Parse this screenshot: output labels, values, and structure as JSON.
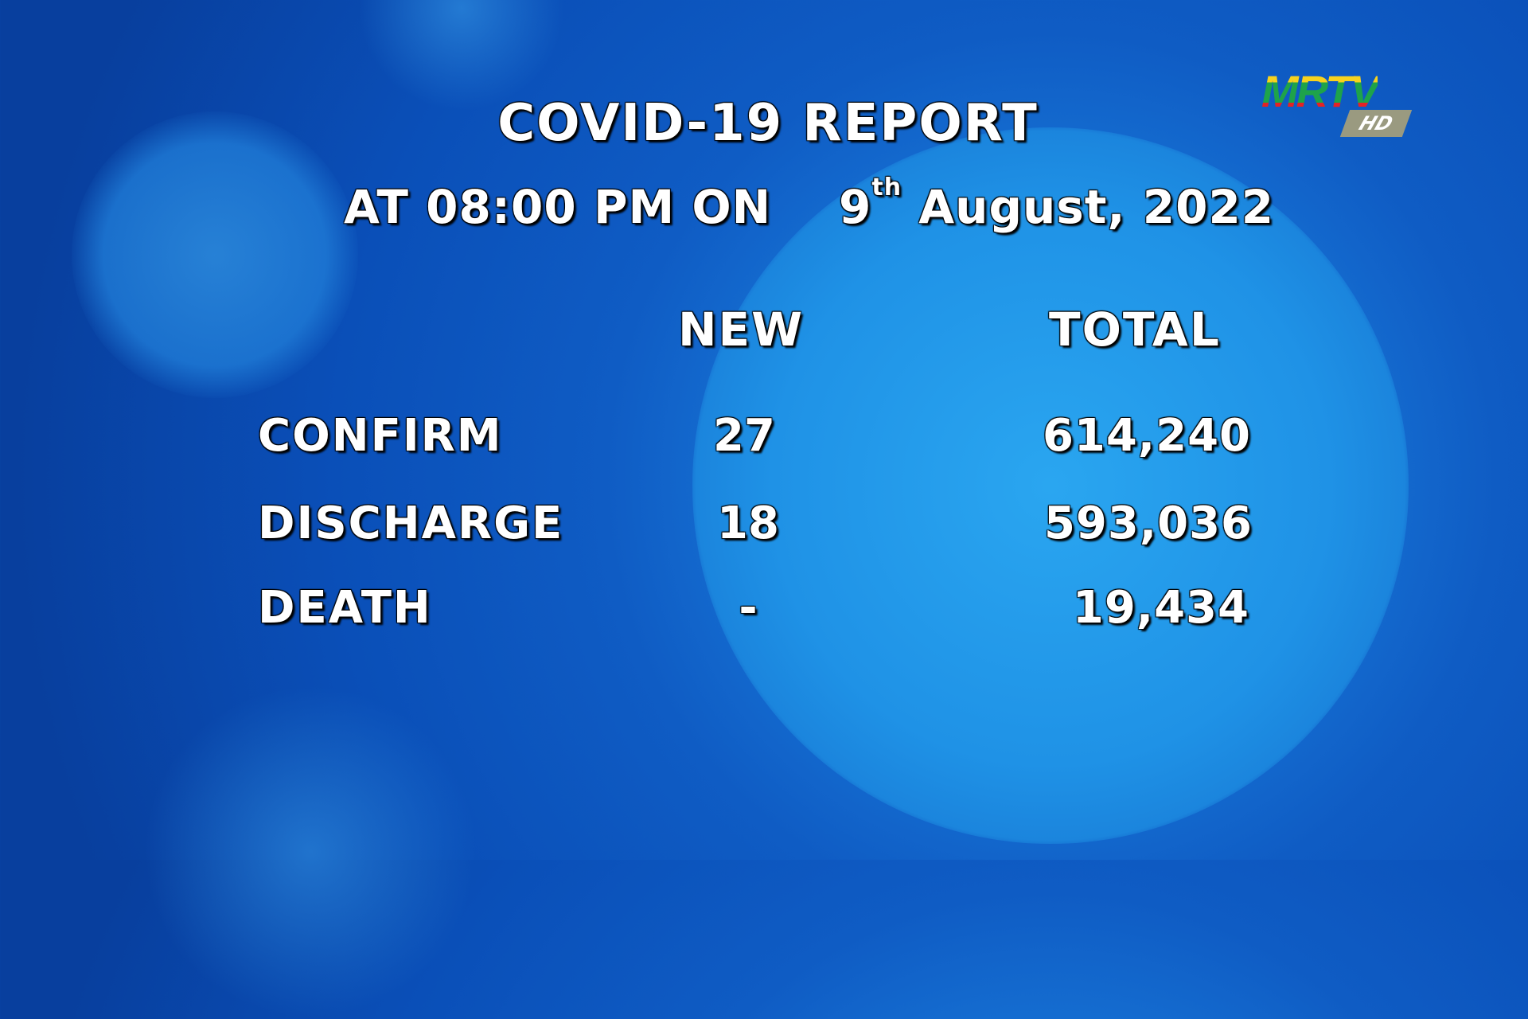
{
  "title": "COVID-19 REPORT",
  "subtitle": {
    "prefix": "AT 08:00 PM ON",
    "day": "9",
    "suffix": "th",
    "date_rest": "August, 2022"
  },
  "columns": {
    "new": "NEW",
    "total": "TOTAL"
  },
  "rows": [
    {
      "label": "CONFIRM",
      "new": "27",
      "total": "614,240"
    },
    {
      "label": "DISCHARGE",
      "new": "18",
      "total": "593,036"
    },
    {
      "label": "DEATH",
      "new": "-",
      "total": "19,434"
    }
  ],
  "logo": {
    "text": "MRTV",
    "badge": "HD",
    "colors": [
      "#f7d21e",
      "#1ea34a",
      "#e52224"
    ]
  }
}
